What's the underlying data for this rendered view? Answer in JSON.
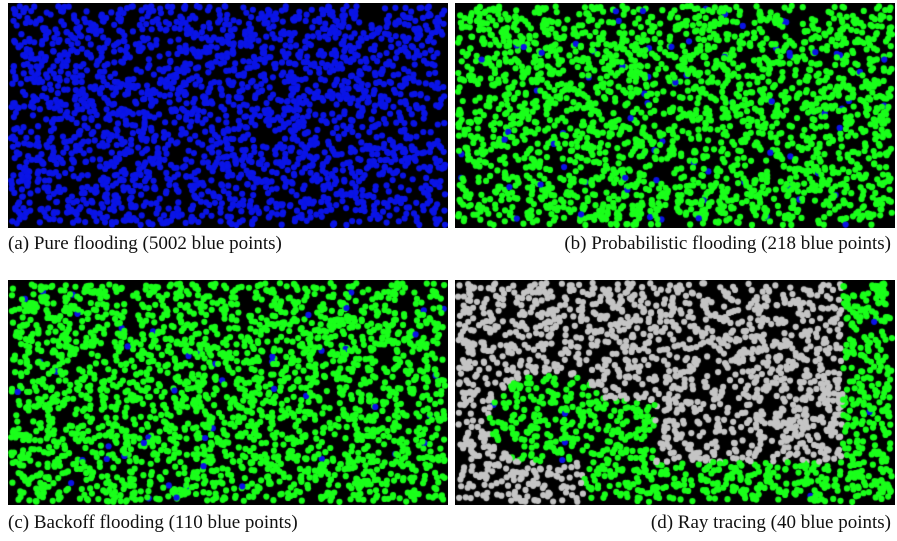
{
  "colors": {
    "background": "#000000",
    "blue": "#0a14e6",
    "green": "#1aff1a",
    "gray": "#c4c4c4"
  },
  "panels": [
    {
      "id": "a",
      "caption": "(a) Pure flooding (5002 blue points)",
      "mode": "pure",
      "blue_points": 5002
    },
    {
      "id": "b",
      "caption": "(b) Probabilistic flooding (218 blue points)",
      "mode": "probabilistic",
      "blue_points": 218
    },
    {
      "id": "c",
      "caption": "(c) Backoff flooding (110 blue points)",
      "mode": "backoff",
      "blue_points": 110
    },
    {
      "id": "d",
      "caption": "(d) Ray tracing (40 blue points)",
      "mode": "raytracing",
      "blue_points": 40
    }
  ]
}
